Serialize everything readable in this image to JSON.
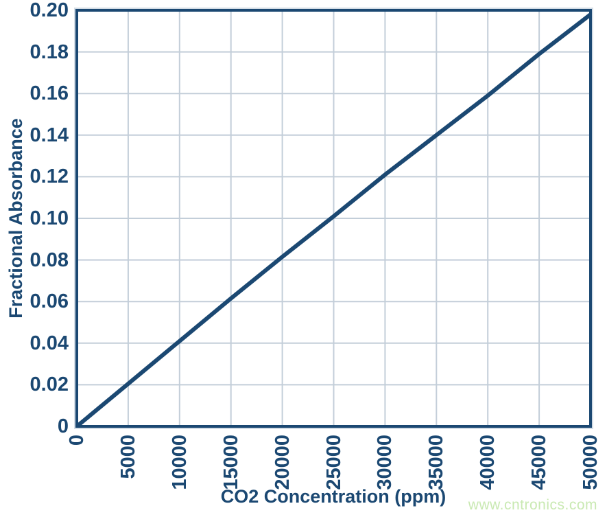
{
  "figure": {
    "watermark": "www.cntronics.com"
  },
  "colors": {
    "navy": "#1b4872",
    "grid": "#c3ced9",
    "frame_glow": "#d4dde6",
    "watermark_green": "#c9e9b2",
    "background": "#ffffff"
  },
  "chart_data": {
    "type": "line",
    "title": "",
    "xlabel": "CO2 Concentration (ppm)",
    "ylabel": "Fractional Absorbance",
    "xlim": [
      0,
      50000
    ],
    "ylim": [
      0,
      0.2
    ],
    "grid": true,
    "legend": false,
    "x_ticks": [
      0,
      5000,
      10000,
      15000,
      20000,
      25000,
      30000,
      35000,
      40000,
      45000,
      50000
    ],
    "x_tick_labels": [
      "0",
      "5000",
      "10000",
      "15000",
      "20000",
      "25000",
      "30000",
      "35000",
      "40000",
      "45000",
      "50000"
    ],
    "y_ticks": [
      0,
      0.02,
      0.04,
      0.06,
      0.08,
      0.1,
      0.12,
      0.14,
      0.16,
      0.18,
      0.2
    ],
    "y_tick_labels": [
      "0",
      "0.02",
      "0.04",
      "0.06",
      "0.08",
      "0.10",
      "0.12",
      "0.14",
      "0.16",
      "0.18",
      "0.20"
    ],
    "x": [
      0,
      5000,
      10000,
      15000,
      20000,
      25000,
      30000,
      35000,
      40000,
      45000,
      50000
    ],
    "series": [
      {
        "name": "Fractional Absorbance",
        "values": [
          0,
          0.0205,
          0.041,
          0.0615,
          0.0815,
          0.101,
          0.121,
          0.14,
          0.159,
          0.179,
          0.198
        ]
      }
    ]
  }
}
